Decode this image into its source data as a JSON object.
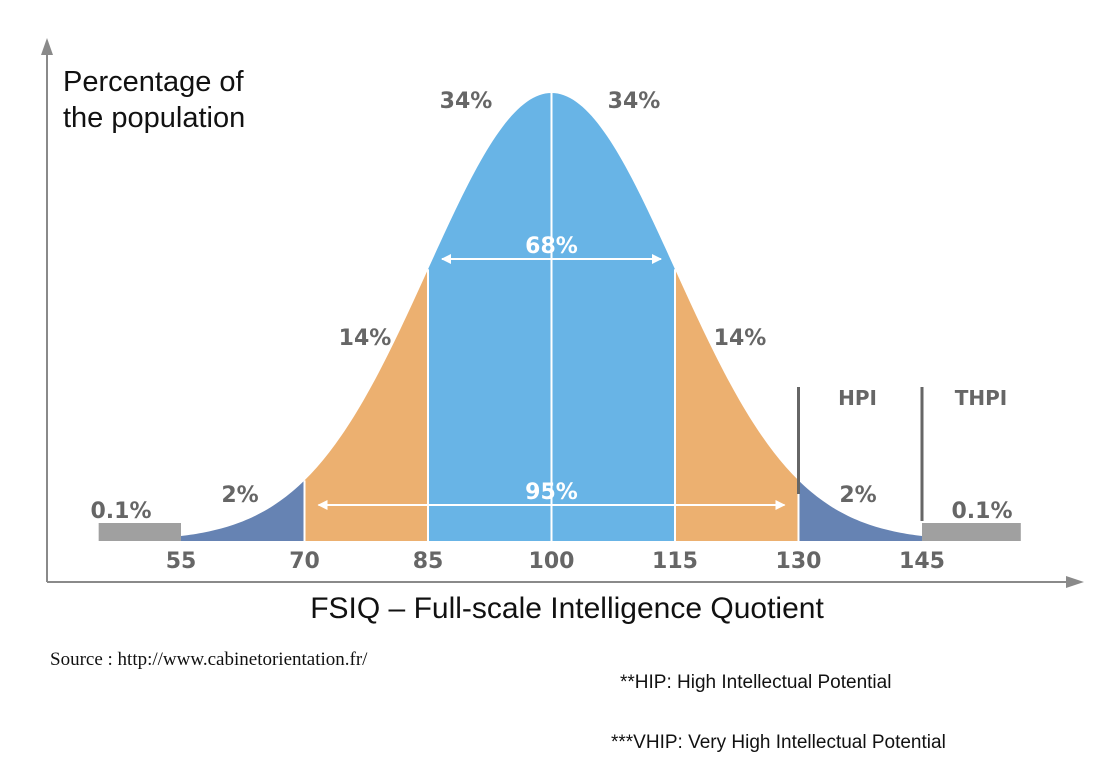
{
  "chart_data": {
    "type": "area",
    "ylabel": "Percentage of the population",
    "xlabel": "FSIQ – Full-scale Intelligence Quotient",
    "x_ticks": [
      55,
      70,
      85,
      100,
      115,
      130,
      145
    ],
    "xlim": [
      45,
      157
    ],
    "mean": 100,
    "sd": 15,
    "segments": [
      {
        "from": 45,
        "to": 55,
        "percent_label": "0.1%",
        "color": "#a0a0a0"
      },
      {
        "from": 55,
        "to": 70,
        "percent_label": "2%",
        "color": "#6683b3"
      },
      {
        "from": 70,
        "to": 85,
        "percent_label": "14%",
        "color": "#ecb070"
      },
      {
        "from": 85,
        "to": 100,
        "percent_label": "34%",
        "color": "#68b4e6"
      },
      {
        "from": 100,
        "to": 115,
        "percent_label": "34%",
        "color": "#68b4e6"
      },
      {
        "from": 115,
        "to": 130,
        "percent_label": "14%",
        "color": "#ecb070"
      },
      {
        "from": 130,
        "to": 145,
        "percent_label": "2%",
        "color": "#6683b3"
      },
      {
        "from": 145,
        "to": 157,
        "percent_label": "0.1%",
        "color": "#a0a0a0"
      }
    ],
    "spans": [
      {
        "from": 85,
        "to": 115,
        "label": "68%"
      },
      {
        "from": 70,
        "to": 130,
        "label": "95%"
      }
    ],
    "thresholds": [
      {
        "x": 130,
        "label": "HPI"
      },
      {
        "x": 145,
        "label": "THPI"
      }
    ]
  },
  "header": {
    "ylabel_line1": "Percentage of",
    "ylabel_line2": "the population"
  },
  "footer": {
    "xlabel": "FSIQ – Full-scale Intelligence Quotient",
    "source": "Source : http://www.cabinetorientation.fr/",
    "note_hip": "**HIP: High Intellectual Potential",
    "note_vhip": "***VHIP: Very High Intellectual Potential"
  },
  "colors": {
    "axis": "#8a8a8a",
    "label_grey": "#666666",
    "white": "#ffffff"
  }
}
